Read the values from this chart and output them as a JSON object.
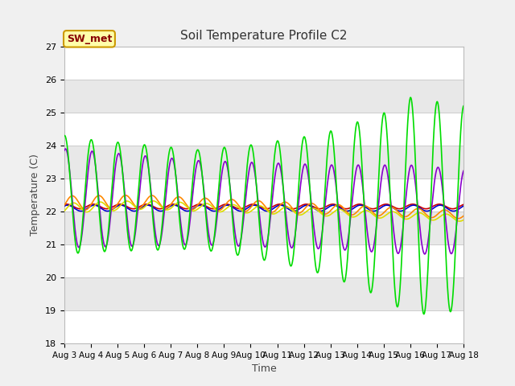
{
  "title": "Soil Temperature Profile C2",
  "xlabel": "Time",
  "ylabel": "Temperature (C)",
  "ylim": [
    18.0,
    27.0
  ],
  "yticks": [
    18.0,
    19.0,
    20.0,
    21.0,
    22.0,
    23.0,
    24.0,
    25.0,
    26.0,
    27.0
  ],
  "date_labels": [
    "Aug 3",
    "Aug 4",
    "Aug 5",
    "Aug 6",
    "Aug 7",
    "Aug 8",
    "Aug 9",
    "Aug 10",
    "Aug 11",
    "Aug 12",
    "Aug 13",
    "Aug 14",
    "Aug 15",
    "Aug 16",
    "Aug 17",
    "Aug 18"
  ],
  "n_days": 15,
  "outer_bg_color": "#f0f0f0",
  "plot_bg_color_light": "#f5f5f5",
  "plot_bg_color_dark": "#e0e0e0",
  "label_box_color": "#ffffaa",
  "label_box_edge": "#cc9900",
  "label_text": "SW_met",
  "label_text_color": "#880000",
  "series_colors": {
    "-32cm": "#cc0000",
    "-8cm": "#0000cc",
    "-2cm": "#00dd00",
    "TC_temp15": "#ff8800",
    "TC_temp16": "#dddd00",
    "TC_temp17": "#8800cc"
  },
  "band_colors": [
    "#ffffff",
    "#e8e8e8"
  ],
  "grid_color": "#cccccc"
}
